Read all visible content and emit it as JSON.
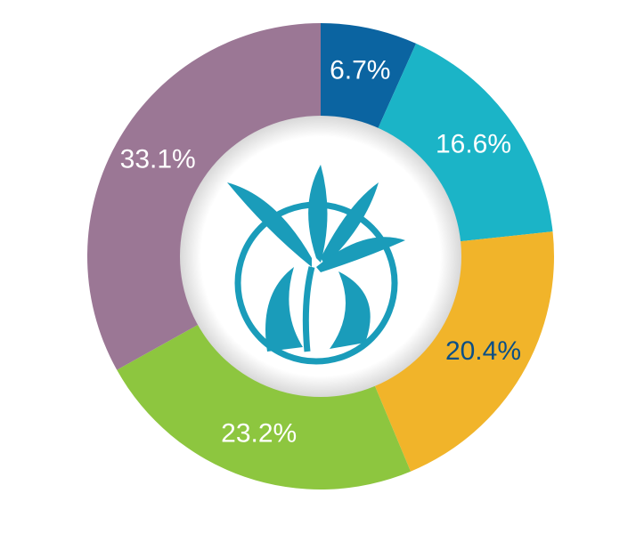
{
  "chart_data": {
    "type": "donut",
    "values": [
      6.7,
      16.6,
      20.4,
      23.2,
      33.1
    ],
    "value_labels": [
      "6.7%",
      "16.6%",
      "20.4%",
      "23.2%",
      "33.1%"
    ],
    "colors": [
      "#0b64a1",
      "#1bb4c7",
      "#f1b42a",
      "#8dc63f",
      "#9b7795"
    ],
    "label_colors": [
      "#ffffff",
      "#ffffff",
      "#0b4f86",
      "#ffffff",
      "#ffffff"
    ]
  }
}
